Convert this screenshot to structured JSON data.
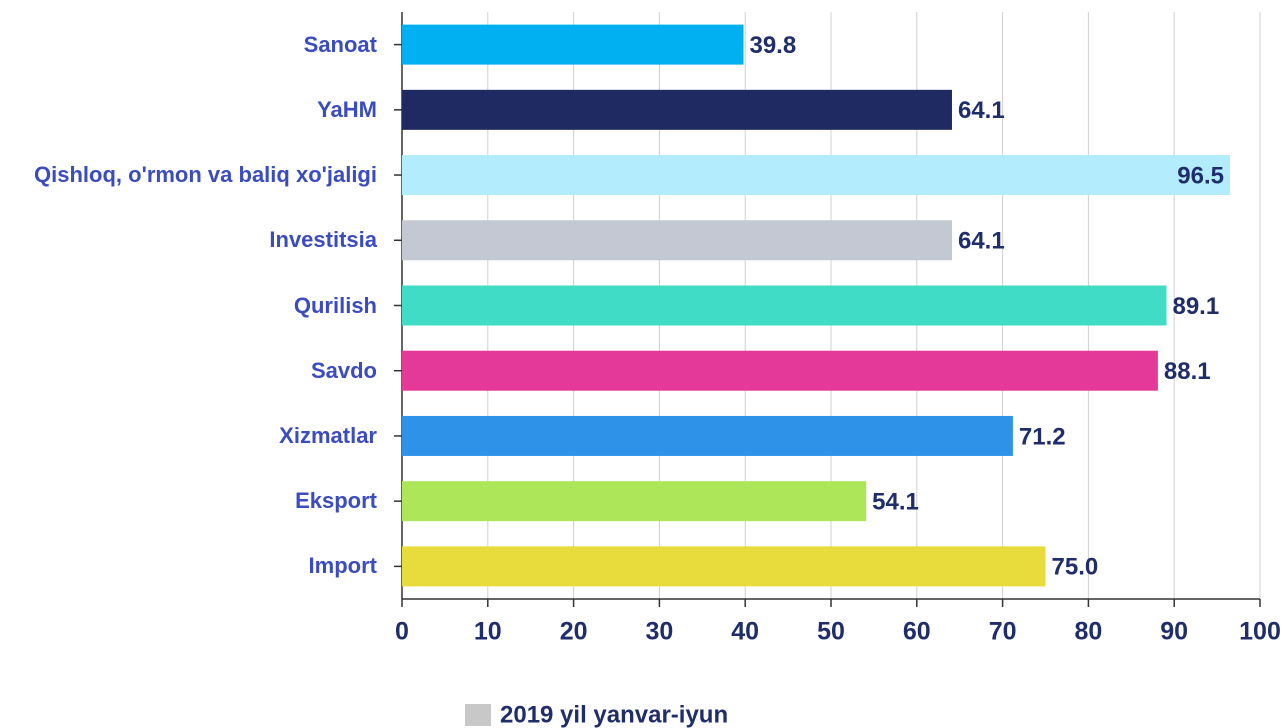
{
  "chart_data": {
    "type": "bar",
    "orientation": "horizontal",
    "categories": [
      "Sanoat",
      "YaHM",
      "Qishloq, o'rmon va baliq xo'jaligi",
      "Investitsia",
      "Qurilish",
      "Savdo",
      "Xizmatlar",
      "Eksport",
      "Import"
    ],
    "series": [
      {
        "name": "2019 yil yanvar-iyun",
        "color": "#c8c8c8",
        "colors": [
          "#00b0f0",
          "#1f2a63",
          "#b3ecfc",
          "#c4c8d2",
          "#40dcc6",
          "#e5399a",
          "#2e92e8",
          "#aee65a",
          "#e8dc3c"
        ],
        "values": [
          39.8,
          64.1,
          96.5,
          64.1,
          89.1,
          88.1,
          71.2,
          54.1,
          75.0
        ],
        "value_labels": [
          "39.8",
          "64.1",
          "96.5",
          "64.1",
          "89.1",
          "88.1",
          "71.2",
          "54.1",
          "75.0"
        ]
      }
    ],
    "xlim": [
      0,
      100
    ],
    "xticks": [
      0,
      10,
      20,
      30,
      40,
      50,
      60,
      70,
      80,
      90,
      100
    ],
    "grid": true
  }
}
